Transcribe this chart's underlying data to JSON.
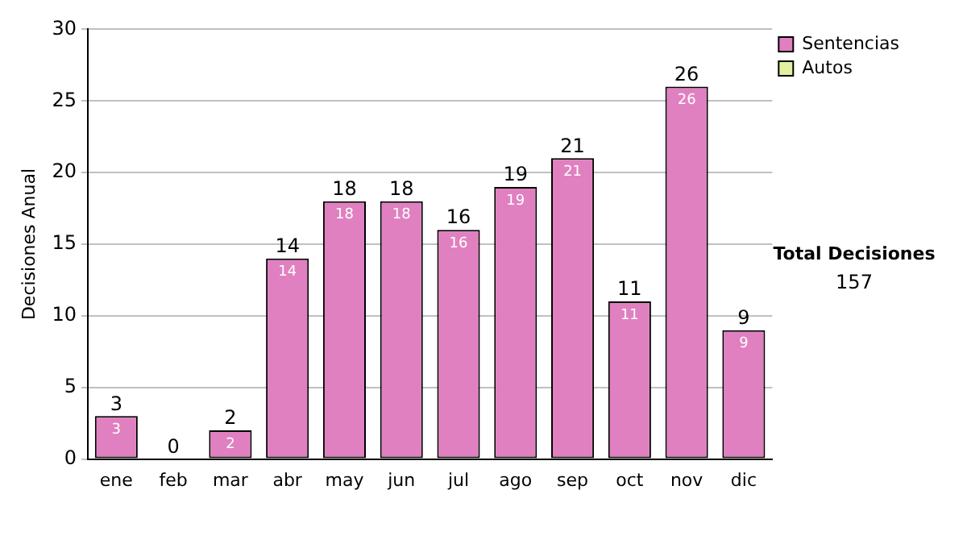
{
  "chart_data": {
    "type": "bar",
    "ylabel": "Decisiones Anual",
    "categories": [
      "ene",
      "feb",
      "mar",
      "abr",
      "may",
      "jun",
      "jul",
      "ago",
      "sep",
      "oct",
      "nov",
      "dic"
    ],
    "series": [
      {
        "name": "Sentencias",
        "color": "#e080c0",
        "values": [
          3,
          0,
          2,
          14,
          18,
          18,
          16,
          19,
          21,
          11,
          26,
          9
        ],
        "value_labels": [
          "3",
          null,
          "2",
          "14",
          "18",
          "18",
          "16",
          "19",
          "21",
          "11",
          "26",
          "9"
        ]
      },
      {
        "name": "Autos",
        "color": "#e0f0a0",
        "values": [
          0,
          0,
          0,
          0,
          0,
          0,
          0,
          0,
          0,
          0,
          0,
          0
        ]
      }
    ],
    "stacked": true,
    "ylim": [
      0,
      30
    ],
    "yticks": [
      0,
      5,
      10,
      15,
      20,
      25,
      30
    ],
    "grid": "y",
    "legend": "right",
    "totals": [
      "3",
      "0",
      "2",
      "14",
      "18",
      "18",
      "16",
      "19",
      "21",
      "11",
      "26",
      "9"
    ],
    "annotations": [
      "Total Decisiones",
      "157"
    ]
  }
}
